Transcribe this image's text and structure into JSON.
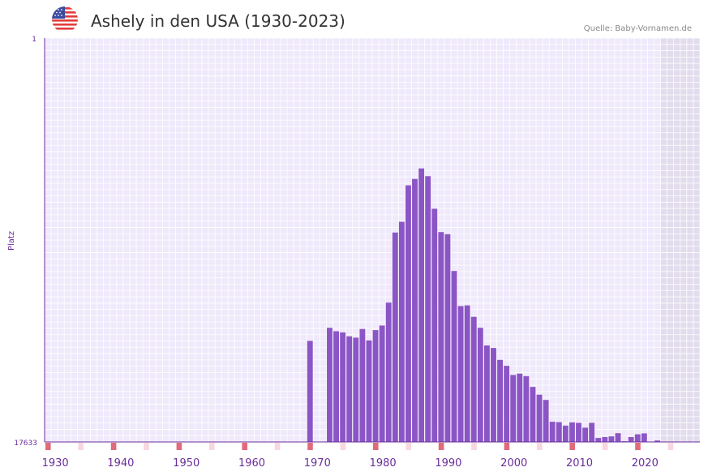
{
  "header": {
    "title": "Ashely in den USA (1930-2023)",
    "source": "Quelle: Baby-Vornamen.de",
    "flag_icon": "us-flag-icon"
  },
  "colors": {
    "bar": "#8b55c6",
    "plot_bg": "#efe9fb",
    "grid": "#ffffff",
    "future_bg": "#e2dced",
    "axis": "#6a2d9a",
    "decade_marker": "#e06b7a",
    "half_decade_marker": "#f8d7de"
  },
  "chart_data": {
    "type": "bar",
    "title": "Ashely in den USA (1930-2023)",
    "xlabel": "",
    "ylabel": "Platz",
    "y_axis_inverted": true,
    "ylim": [
      1,
      17633
    ],
    "ytick_labels": [
      "1",
      "17633"
    ],
    "xlim": [
      1929,
      2029
    ],
    "xtick_labels": [
      "1930",
      "1940",
      "1950",
      "1960",
      "1970",
      "1980",
      "1990",
      "2000",
      "2010",
      "2020"
    ],
    "x": [
      1969,
      1972,
      1973,
      1974,
      1975,
      1976,
      1977,
      1978,
      1979,
      1980,
      1981,
      1982,
      1983,
      1984,
      1985,
      1986,
      1987,
      1988,
      1989,
      1990,
      1991,
      1992,
      1993,
      1994,
      1995,
      1996,
      1997,
      1998,
      1999,
      2000,
      2001,
      2002,
      2003,
      2004,
      2005,
      2006,
      2007,
      2008,
      2009,
      2010,
      2011,
      2012,
      2013,
      2014,
      2015,
      2016,
      2017,
      2018,
      2019,
      2020,
      2021,
      2022
    ],
    "values": [
      13220,
      12650,
      12800,
      12850,
      13020,
      13080,
      12700,
      13200,
      12750,
      12550,
      11550,
      8490,
      8020,
      6430,
      6150,
      5690,
      6030,
      7450,
      8470,
      8560,
      10170,
      11700,
      11670,
      12170,
      12650,
      13420,
      13530,
      14050,
      14310,
      14710,
      14650,
      14760,
      15230,
      15570,
      15800,
      16750,
      16770,
      16920,
      16780,
      16800,
      17010,
      16800,
      17460,
      17420,
      17390,
      17250,
      17600,
      17420,
      17300,
      17260,
      17670,
      17570
    ]
  }
}
